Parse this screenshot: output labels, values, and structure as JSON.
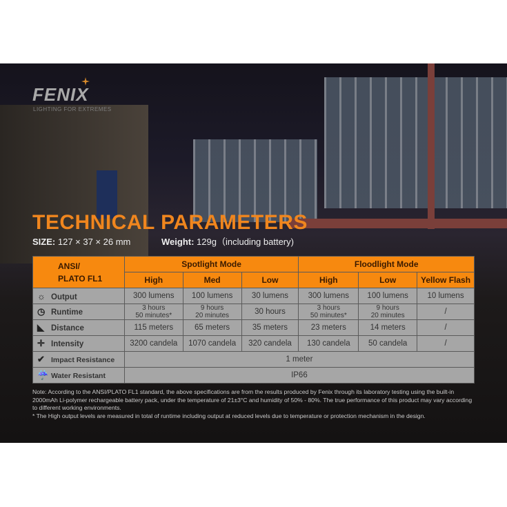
{
  "brand": {
    "logo": "FENIX",
    "tagline": "LIGHTING FOR EXTREMES",
    "accent": "#f7890f"
  },
  "title": "TECHNICAL PARAMETERS",
  "size": {
    "label": "SIZE:",
    "value": "127 × 37 × 26 mm"
  },
  "weight": {
    "label": "Weight:",
    "value": "129g（including battery)"
  },
  "table": {
    "corner": [
      "ANSI/",
      "PLATO  FL1"
    ],
    "groups": [
      "Spotlight Mode",
      "Floodlight Mode"
    ],
    "modes": [
      "High",
      "Med",
      "Low",
      "High",
      "Low",
      "Yellow Flash"
    ],
    "rows": [
      {
        "icon": "output-icon",
        "label": "Output",
        "cells": [
          "300 lumens",
          "100 lumens",
          "30 lumens",
          "300 lumens",
          "100 lumens",
          "10 lumens"
        ]
      },
      {
        "icon": "clock-icon",
        "label": "Runtime",
        "cells": [
          [
            "3 hours",
            "50 minutes*"
          ],
          [
            "9 hours",
            "20 minutes"
          ],
          "30 hours",
          [
            "3 hours",
            "50 minutes*"
          ],
          [
            "9 hours",
            "20 minutes"
          ],
          "/"
        ]
      },
      {
        "icon": "distance-icon",
        "label": "Distance",
        "cells": [
          "115 meters",
          "65 meters",
          "35 meters",
          "23 meters",
          "14 meters",
          "/"
        ]
      },
      {
        "icon": "intensity-icon",
        "label": "Intensity",
        "cells": [
          "3200 candela",
          "1070 candela",
          "320 candela",
          "130 candela",
          "50 candela",
          "/"
        ]
      }
    ],
    "impact": {
      "icon": "impact-icon",
      "label": "Impact Resistance",
      "value": "1 meter"
    },
    "water": {
      "icon": "water-icon",
      "label": "Water Resistant",
      "value": "IP66"
    }
  },
  "note": "Note: According to the ANSI/PLATO FL1 standard, the above specifications are from the results produced by Fenix through its laboratory testing using the built-in 2000mAh Li-polymer rechargeable battery pack, under the temperature of 21±3°C and humidity of 50% - 80%. The true performance of this product may vary according to different working environments.",
  "footnote": "* The High output levels are measured in total of runtime including output at reduced levels due to temperature or protection mechanism in the design."
}
